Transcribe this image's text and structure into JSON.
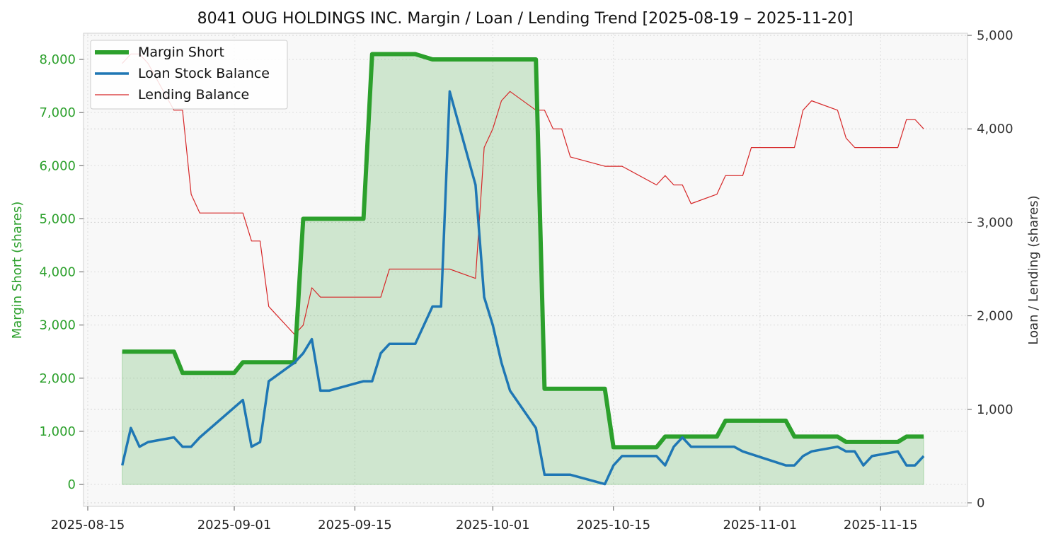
{
  "chart_data": {
    "type": "line",
    "title": "8041 OUG HOLDINGS INC. Margin / Loan / Lending Trend [2025-08-19 – 2025-11-20]",
    "ylabel_left": "Margin Short (shares)",
    "ylabel_right": "Loan / Lending (shares)",
    "xlabel": "",
    "grid": true,
    "legend_position": "top-left",
    "x_ticks": [
      "2025-08-15",
      "2025-09-01",
      "2025-09-15",
      "2025-10-01",
      "2025-10-15",
      "2025-11-01",
      "2025-11-15"
    ],
    "y_left_ticks": [
      "0",
      "1,000",
      "2,000",
      "3,000",
      "4,000",
      "5,000",
      "6,000",
      "7,000",
      "8,000"
    ],
    "y_right_ticks": [
      "0",
      "1,000",
      "2,000",
      "3,000",
      "4,000",
      "5,000"
    ],
    "colors": {
      "margin": "#2ca02c",
      "loan": "#1f77b4",
      "lending": "#d62728",
      "left_axis_text": "#2ca02c",
      "right_axis_text": "#333333"
    },
    "series": [
      {
        "name": "Margin Short",
        "axis": "left",
        "points": [
          [
            "2025-08-19",
            2500
          ],
          [
            "2025-08-20",
            2500
          ],
          [
            "2025-08-21",
            2500
          ],
          [
            "2025-08-22",
            2500
          ],
          [
            "2025-08-25",
            2500
          ],
          [
            "2025-08-26",
            2100
          ],
          [
            "2025-08-27",
            2100
          ],
          [
            "2025-08-28",
            2100
          ],
          [
            "2025-08-29",
            2100
          ],
          [
            "2025-09-01",
            2100
          ],
          [
            "2025-09-02",
            2300
          ],
          [
            "2025-09-03",
            2300
          ],
          [
            "2025-09-04",
            2300
          ],
          [
            "2025-09-05",
            2300
          ],
          [
            "2025-09-08",
            2300
          ],
          [
            "2025-09-09",
            5000
          ],
          [
            "2025-09-10",
            5000
          ],
          [
            "2025-09-11",
            5000
          ],
          [
            "2025-09-12",
            5000
          ],
          [
            "2025-09-16",
            5000
          ],
          [
            "2025-09-17",
            8100
          ],
          [
            "2025-09-18",
            8100
          ],
          [
            "2025-09-19",
            8100
          ],
          [
            "2025-09-22",
            8100
          ],
          [
            "2025-09-24",
            8000
          ],
          [
            "2025-09-25",
            8000
          ],
          [
            "2025-09-26",
            8000
          ],
          [
            "2025-09-29",
            8000
          ],
          [
            "2025-09-30",
            8000
          ],
          [
            "2025-10-01",
            8000
          ],
          [
            "2025-10-02",
            8000
          ],
          [
            "2025-10-03",
            8000
          ],
          [
            "2025-10-06",
            8000
          ],
          [
            "2025-10-07",
            1800
          ],
          [
            "2025-10-08",
            1800
          ],
          [
            "2025-10-09",
            1800
          ],
          [
            "2025-10-10",
            1800
          ],
          [
            "2025-10-14",
            1800
          ],
          [
            "2025-10-15",
            700
          ],
          [
            "2025-10-16",
            700
          ],
          [
            "2025-10-17",
            700
          ],
          [
            "2025-10-20",
            700
          ],
          [
            "2025-10-21",
            900
          ],
          [
            "2025-10-22",
            900
          ],
          [
            "2025-10-23",
            900
          ],
          [
            "2025-10-24",
            900
          ],
          [
            "2025-10-27",
            900
          ],
          [
            "2025-10-28",
            1200
          ],
          [
            "2025-10-29",
            1200
          ],
          [
            "2025-10-30",
            1200
          ],
          [
            "2025-10-31",
            1200
          ],
          [
            "2025-11-04",
            1200
          ],
          [
            "2025-11-05",
            900
          ],
          [
            "2025-11-06",
            900
          ],
          [
            "2025-11-07",
            900
          ],
          [
            "2025-11-10",
            900
          ],
          [
            "2025-11-11",
            800
          ],
          [
            "2025-11-12",
            800
          ],
          [
            "2025-11-13",
            800
          ],
          [
            "2025-11-14",
            800
          ],
          [
            "2025-11-17",
            800
          ],
          [
            "2025-11-18",
            900
          ],
          [
            "2025-11-19",
            900
          ],
          [
            "2025-11-20",
            900
          ]
        ]
      },
      {
        "name": "Loan Stock Balance",
        "axis": "right",
        "points": [
          [
            "2025-08-19",
            400
          ],
          [
            "2025-08-20",
            800
          ],
          [
            "2025-08-21",
            600
          ],
          [
            "2025-08-22",
            650
          ],
          [
            "2025-08-25",
            700
          ],
          [
            "2025-08-26",
            600
          ],
          [
            "2025-08-27",
            600
          ],
          [
            "2025-08-28",
            700
          ],
          [
            "2025-09-02",
            1100
          ],
          [
            "2025-09-03",
            600
          ],
          [
            "2025-09-04",
            650
          ],
          [
            "2025-09-05",
            1300
          ],
          [
            "2025-09-08",
            1500
          ],
          [
            "2025-09-09",
            1600
          ],
          [
            "2025-09-10",
            1750
          ],
          [
            "2025-09-11",
            1200
          ],
          [
            "2025-09-12",
            1200
          ],
          [
            "2025-09-16",
            1300
          ],
          [
            "2025-09-17",
            1300
          ],
          [
            "2025-09-18",
            1600
          ],
          [
            "2025-09-19",
            1700
          ],
          [
            "2025-09-22",
            1700
          ],
          [
            "2025-09-24",
            2100
          ],
          [
            "2025-09-25",
            2100
          ],
          [
            "2025-09-26",
            4400
          ],
          [
            "2025-09-29",
            3400
          ],
          [
            "2025-09-30",
            2200
          ],
          [
            "2025-10-01",
            1900
          ],
          [
            "2025-10-02",
            1500
          ],
          [
            "2025-10-03",
            1200
          ],
          [
            "2025-10-06",
            800
          ],
          [
            "2025-10-07",
            300
          ],
          [
            "2025-10-08",
            300
          ],
          [
            "2025-10-09",
            300
          ],
          [
            "2025-10-10",
            300
          ],
          [
            "2025-10-14",
            200
          ],
          [
            "2025-10-15",
            400
          ],
          [
            "2025-10-16",
            500
          ],
          [
            "2025-10-17",
            500
          ],
          [
            "2025-10-20",
            500
          ],
          [
            "2025-10-21",
            400
          ],
          [
            "2025-10-22",
            600
          ],
          [
            "2025-10-23",
            700
          ],
          [
            "2025-10-24",
            600
          ],
          [
            "2025-10-27",
            600
          ],
          [
            "2025-10-29",
            600
          ],
          [
            "2025-10-30",
            550
          ],
          [
            "2025-11-04",
            400
          ],
          [
            "2025-11-05",
            400
          ],
          [
            "2025-11-06",
            500
          ],
          [
            "2025-11-07",
            550
          ],
          [
            "2025-11-10",
            600
          ],
          [
            "2025-11-11",
            550
          ],
          [
            "2025-11-12",
            550
          ],
          [
            "2025-11-13",
            400
          ],
          [
            "2025-11-14",
            500
          ],
          [
            "2025-11-17",
            550
          ],
          [
            "2025-11-18",
            400
          ],
          [
            "2025-11-19",
            400
          ],
          [
            "2025-11-20",
            500
          ]
        ]
      },
      {
        "name": "Lending Balance",
        "axis": "right",
        "points": [
          [
            "2025-08-19",
            4700
          ],
          [
            "2025-08-20",
            4800
          ],
          [
            "2025-08-21",
            4800
          ],
          [
            "2025-08-22",
            4700
          ],
          [
            "2025-08-25",
            4200
          ],
          [
            "2025-08-26",
            4200
          ],
          [
            "2025-08-27",
            3300
          ],
          [
            "2025-08-28",
            3100
          ],
          [
            "2025-09-02",
            3100
          ],
          [
            "2025-09-03",
            2800
          ],
          [
            "2025-09-04",
            2800
          ],
          [
            "2025-09-05",
            2100
          ],
          [
            "2025-09-08",
            1800
          ],
          [
            "2025-09-09",
            1900
          ],
          [
            "2025-09-10",
            2300
          ],
          [
            "2025-09-11",
            2200
          ],
          [
            "2025-09-12",
            2200
          ],
          [
            "2025-09-18",
            2200
          ],
          [
            "2025-09-19",
            2500
          ],
          [
            "2025-09-26",
            2500
          ],
          [
            "2025-09-29",
            2400
          ],
          [
            "2025-09-30",
            3800
          ],
          [
            "2025-10-01",
            4000
          ],
          [
            "2025-10-02",
            4300
          ],
          [
            "2025-10-03",
            4400
          ],
          [
            "2025-10-06",
            4200
          ],
          [
            "2025-10-07",
            4200
          ],
          [
            "2025-10-08",
            4000
          ],
          [
            "2025-10-09",
            4000
          ],
          [
            "2025-10-10",
            3700
          ],
          [
            "2025-10-14",
            3600
          ],
          [
            "2025-10-15",
            3600
          ],
          [
            "2025-10-16",
            3600
          ],
          [
            "2025-10-20",
            3400
          ],
          [
            "2025-10-21",
            3500
          ],
          [
            "2025-10-22",
            3400
          ],
          [
            "2025-10-23",
            3400
          ],
          [
            "2025-10-24",
            3200
          ],
          [
            "2025-10-27",
            3300
          ],
          [
            "2025-10-28",
            3500
          ],
          [
            "2025-10-29",
            3500
          ],
          [
            "2025-10-30",
            3500
          ],
          [
            "2025-10-31",
            3800
          ],
          [
            "2025-11-04",
            3800
          ],
          [
            "2025-11-05",
            3800
          ],
          [
            "2025-11-06",
            4200
          ],
          [
            "2025-11-07",
            4300
          ],
          [
            "2025-11-10",
            4200
          ],
          [
            "2025-11-11",
            3900
          ],
          [
            "2025-11-12",
            3800
          ],
          [
            "2025-11-17",
            3800
          ],
          [
            "2025-11-18",
            4100
          ],
          [
            "2025-11-19",
            4100
          ],
          [
            "2025-11-20",
            4000
          ]
        ]
      }
    ]
  }
}
